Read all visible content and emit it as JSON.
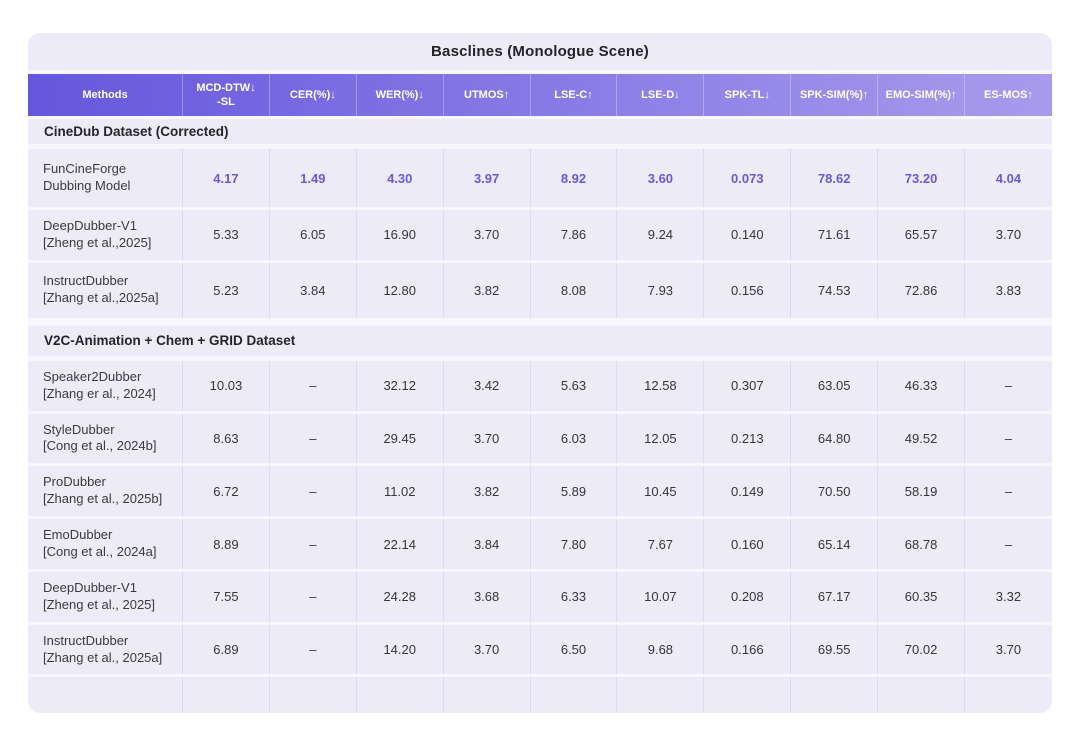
{
  "title": "Basclines (Monologue Scene)",
  "columns": [
    {
      "l1": "Methods",
      "l2": ""
    },
    {
      "l1": "MCD-DTW↓",
      "l2": "-SL"
    },
    {
      "l1": "CER(%)↓",
      "l2": ""
    },
    {
      "l1": "WER(%)↓",
      "l2": ""
    },
    {
      "l1": "UTMOS↑",
      "l2": ""
    },
    {
      "l1": "LSE-C↑",
      "l2": ""
    },
    {
      "l1": "LSE-D↓",
      "l2": ""
    },
    {
      "l1": "SPK-TL↓",
      "l2": ""
    },
    {
      "l1": "SPK-SIM(%)↑",
      "l2": ""
    },
    {
      "l1": "EMO-SIM(%)↑",
      "l2": ""
    },
    {
      "l1": "ES-MOS↑",
      "l2": ""
    }
  ],
  "sections": [
    {
      "heading": "CineDub Dataset (Corrected)",
      "rows": [
        {
          "name": "FunCineForge",
          "cite": "Dubbing Model",
          "highlight": true,
          "values": [
            "4.17",
            "1.49",
            "4.30",
            "3.97",
            "8.92",
            "3.60",
            "0.073",
            "78.62",
            "73.20",
            "4.04"
          ]
        },
        {
          "name": "DeepDubber-V1",
          "cite": "[Zheng et al.,2025]",
          "highlight": false,
          "values": [
            "5.33",
            "6.05",
            "16.90",
            "3.70",
            "7.86",
            "9.24",
            "0.140",
            "71.61",
            "65.57",
            "3.70"
          ]
        },
        {
          "name": "InstructDubber",
          "cite": "[Zhang et al.,2025a]",
          "highlight": false,
          "values": [
            "5.23",
            "3.84",
            "12.80",
            "3.82",
            "8.08",
            "7.93",
            "0.156",
            "74.53",
            "72.86",
            "3.83"
          ]
        }
      ]
    },
    {
      "heading": "V2C-Animation + Chem + GRID Dataset",
      "rows": [
        {
          "name": "Speaker2Dubber",
          "cite": "[Zhang er al., 2024]",
          "highlight": false,
          "values": [
            "10.03",
            "–",
            "32.12",
            "3.42",
            "5.63",
            "12.58",
            "0.307",
            "63.05",
            "46.33",
            "–"
          ]
        },
        {
          "name": "StyleDubber",
          "cite": "[Cong et al., 2024b]",
          "highlight": false,
          "values": [
            "8.63",
            "–",
            "29.45",
            "3.70",
            "6.03",
            "12.05",
            "0.213",
            "64.80",
            "49.52",
            "–"
          ]
        },
        {
          "name": "ProDubber",
          "cite": "[Zhang et al., 2025b]",
          "highlight": false,
          "values": [
            "6.72",
            "–",
            "11.02",
            "3.82",
            "5.89",
            "10.45",
            "0.149",
            "70.50",
            "58.19",
            "–"
          ]
        },
        {
          "name": "EmoDubber",
          "cite": "[Cong et al., 2024a]",
          "highlight": false,
          "values": [
            "8.89",
            "–",
            "22.14",
            "3.84",
            "7.80",
            "7.67",
            "0.160",
            "65.14",
            "68.78",
            "–"
          ]
        },
        {
          "name": "DeepDubber-V1",
          "cite": "[Zheng et al., 2025]",
          "highlight": false,
          "values": [
            "7.55",
            "–",
            "24.28",
            "3.68",
            "6.33",
            "10.07",
            "0.208",
            "67.17",
            "60.35",
            "3.32"
          ]
        },
        {
          "name": "InstructDubber",
          "cite": "[Zhang et al., 2025a]",
          "highlight": false,
          "values": [
            "6.89",
            "–",
            "14.20",
            "3.70",
            "6.50",
            "9.68",
            "0.166",
            "69.55",
            "70.02",
            "3.70"
          ]
        }
      ]
    }
  ],
  "colors": {
    "card_background": "#ECEBF7",
    "header_gradient_left": "#6557DC",
    "header_gradient_right": "#A89BEC",
    "highlight_value": "#6859DA",
    "body_text": "#35353E",
    "separator": "#F7F6FC",
    "column_divider": "#DDD9EE"
  }
}
